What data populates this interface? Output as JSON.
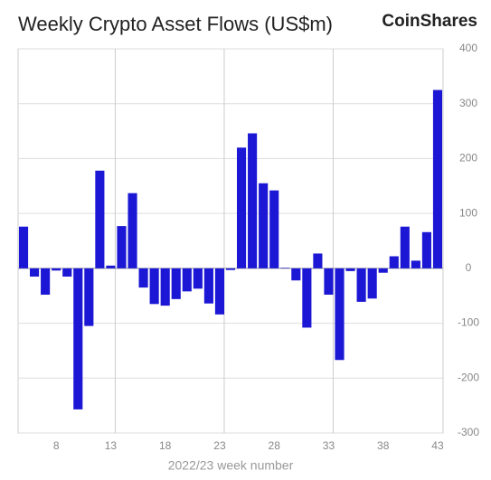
{
  "chart_data": {
    "type": "bar",
    "title": "Weekly Crypto Asset Flows (US$m)",
    "brand": "CoinShares",
    "x_label": "2022/23 week number",
    "categories": [
      null,
      null,
      null,
      "8",
      null,
      null,
      null,
      null,
      "13",
      null,
      null,
      null,
      null,
      "18",
      null,
      null,
      null,
      null,
      "23",
      null,
      null,
      null,
      null,
      "28",
      null,
      null,
      null,
      null,
      "33",
      null,
      null,
      null,
      null,
      "38",
      null,
      null,
      null,
      null,
      "43"
    ],
    "values": [
      76,
      -15,
      -48,
      -4,
      -15,
      -257,
      -105,
      178,
      5,
      77,
      137,
      -35,
      -65,
      -68,
      -56,
      -42,
      -37,
      -64,
      -84,
      -3,
      220,
      246,
      155,
      142,
      1,
      -22,
      -108,
      27,
      -48,
      -167,
      -5,
      -61,
      -55,
      -8,
      22,
      76,
      14,
      66,
      325
    ],
    "color": "#1c17d4",
    "ylim": [
      -300,
      400
    ],
    "yticks": [
      -300,
      -200,
      -100,
      0,
      100,
      200,
      300,
      400
    ],
    "grid": true
  }
}
